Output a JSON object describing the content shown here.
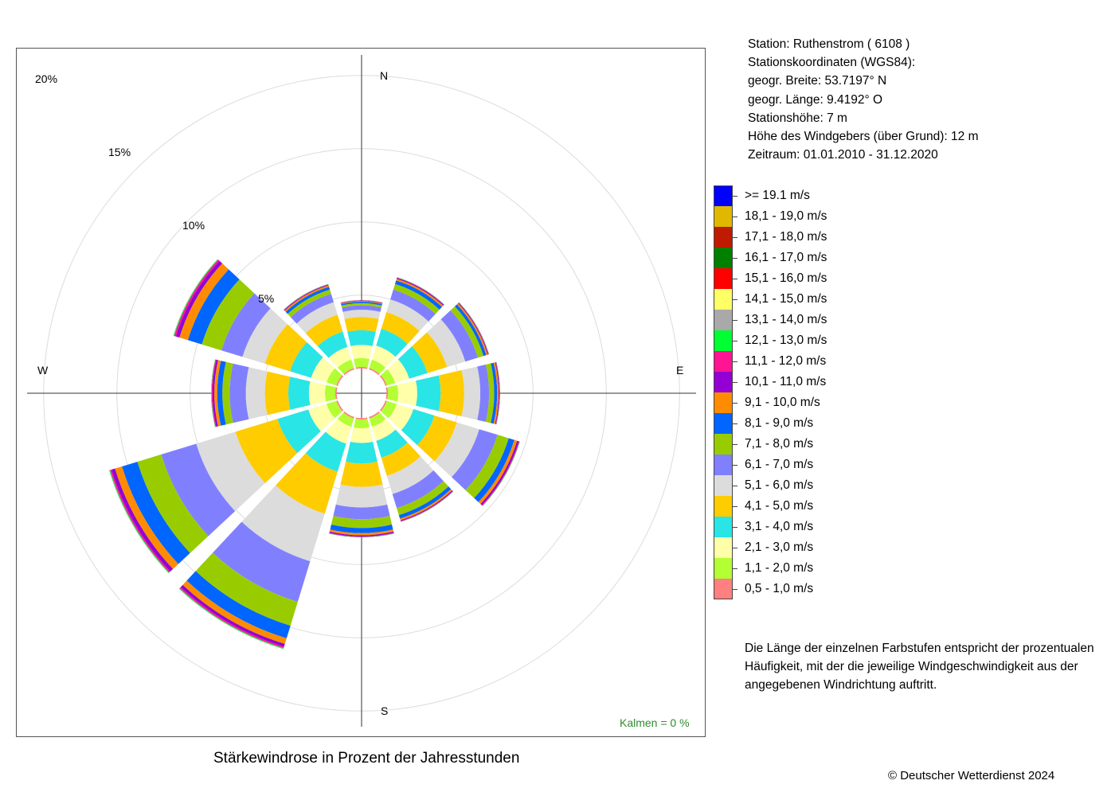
{
  "station_info": [
    "Station:  Ruthenstrom  ( 6108 )",
    "Stationskoordinaten (WGS84):",
    "geogr. Breite: 53.7197° N",
    "geogr. Länge:   9.4192° O",
    "Stationshöhe: 7 m",
    "Höhe des Windgebers (über Grund): 12 m",
    "Zeitraum: 01.01.2010 - 31.12.2020"
  ],
  "explanation": "Die Länge der einzelnen Farbstufen entspricht der prozentualen Häufigkeit, mit der die jeweilige Windgeschwindigkeit aus der angegebenen Windrichtung auftritt.",
  "copyright": "© Deutscher Wetterdienst  2024",
  "chart_data": {
    "type": "windrose",
    "title": "Stärkewindrose in Prozent der Jahresstunden",
    "calm_label": "Kalmen  =  0 %",
    "compass_labels": {
      "N": "N",
      "E": "E",
      "S": "S",
      "W": "W"
    },
    "ring_labels": [
      {
        "value": 5,
        "label": "5%"
      },
      {
        "value": 10,
        "label": "10%"
      },
      {
        "value": 15,
        "label": "15%"
      },
      {
        "value": 20,
        "label": "20%"
      }
    ],
    "rmax": 20,
    "inner_offset": 1.7,
    "directions_deg": [
      0,
      30,
      60,
      90,
      120,
      150,
      180,
      210,
      240,
      270,
      300,
      330
    ],
    "speed_classes": [
      {
        "label": "0,5 - 1,0 m/s",
        "color": "#FF8080"
      },
      {
        "label": "1,1 - 2,0 m/s",
        "color": "#B3FF33"
      },
      {
        "label": "2,1 - 3,0 m/s",
        "color": "#FFFFAA"
      },
      {
        "label": "3,1 - 4,0 m/s",
        "color": "#29E5E5"
      },
      {
        "label": "4,1 - 5,0 m/s",
        "color": "#FFCC00"
      },
      {
        "label": "5,1 - 6,0 m/s",
        "color": "#DCDCDC"
      },
      {
        "label": "6,1 - 7,0 m/s",
        "color": "#8080FF"
      },
      {
        "label": "7,1 - 8,0 m/s",
        "color": "#99CC00"
      },
      {
        "label": "8,1 - 9,0 m/s",
        "color": "#0066FF"
      },
      {
        "label": "9,1 - 10,0 m/s",
        "color": "#FF8C00"
      },
      {
        "label": "10,1 - 11,0 m/s",
        "color": "#9400D3"
      },
      {
        "label": "11,1 - 12,0 m/s",
        "color": "#FF1493"
      },
      {
        "label": "12,1 - 13,0 m/s",
        "color": "#00FF33"
      },
      {
        "label": "13,1 - 14,0 m/s",
        "color": "#A9A9A9"
      },
      {
        "label": "14,1 - 15,0 m/s",
        "color": "#FFFF66"
      },
      {
        "label": "15,1 - 16,0 m/s",
        "color": "#FF0000"
      },
      {
        "label": "16,1 - 17,0 m/s",
        "color": "#008000"
      },
      {
        "label": "17,1 - 18,0 m/s",
        "color": "#C01A00"
      },
      {
        "label": "18,1 - 19,0 m/s",
        "color": "#E0B800"
      },
      {
        "label": ">= 19.1 m/s",
        "color": "#0000FF"
      }
    ],
    "series": [
      {
        "direction": 0,
        "values": [
          0.1,
          0.6,
          0.9,
          1.0,
          0.9,
          0.5,
          0.3,
          0.15,
          0.1,
          0.05,
          0.03,
          0.02,
          0.01,
          0.01,
          0,
          0,
          0,
          0,
          0,
          0
        ]
      },
      {
        "direction": 30,
        "values": [
          0.1,
          0.6,
          1.0,
          1.2,
          1.2,
          0.9,
          0.7,
          0.4,
          0.25,
          0.12,
          0.06,
          0.03,
          0.02,
          0.01,
          0,
          0,
          0,
          0,
          0,
          0
        ]
      },
      {
        "direction": 60,
        "values": [
          0.1,
          0.6,
          1.0,
          1.3,
          1.4,
          1.3,
          0.9,
          0.4,
          0.2,
          0.1,
          0.05,
          0.03,
          0.02,
          0.01,
          0,
          0,
          0,
          0,
          0,
          0
        ]
      },
      {
        "direction": 90,
        "values": [
          0.1,
          0.7,
          1.3,
          1.6,
          1.6,
          1.1,
          0.6,
          0.35,
          0.2,
          0.1,
          0.05,
          0.03,
          0.02,
          0.01,
          0,
          0,
          0,
          0,
          0,
          0
        ]
      },
      {
        "direction": 120,
        "values": [
          0.1,
          0.7,
          1.2,
          1.5,
          1.6,
          1.6,
          1.3,
          0.8,
          0.4,
          0.2,
          0.12,
          0.05,
          0.03,
          0.01,
          0,
          0,
          0,
          0,
          0,
          0
        ]
      },
      {
        "direction": 150,
        "values": [
          0.1,
          0.6,
          1.0,
          1.2,
          1.3,
          1.3,
          1.0,
          0.5,
          0.25,
          0.12,
          0.06,
          0.03,
          0.02,
          0.01,
          0,
          0,
          0,
          0,
          0,
          0
        ]
      },
      {
        "direction": 180,
        "values": [
          0.1,
          0.6,
          1.0,
          1.4,
          1.6,
          1.4,
          0.8,
          0.6,
          0.35,
          0.15,
          0.08,
          0.04,
          0.02,
          0.01,
          0,
          0,
          0,
          0,
          0,
          0
        ]
      },
      {
        "direction": 210,
        "values": [
          0.1,
          0.6,
          1.2,
          2.0,
          3.0,
          3.4,
          2.9,
          1.7,
          0.9,
          0.4,
          0.2,
          0.1,
          0.05,
          0.02,
          0,
          0,
          0,
          0,
          0,
          0
        ]
      },
      {
        "direction": 240,
        "values": [
          0.1,
          0.7,
          1.3,
          2.2,
          3.0,
          2.8,
          2.5,
          1.7,
          1.1,
          0.5,
          0.25,
          0.1,
          0.05,
          0.02,
          0,
          0,
          0,
          0,
          0,
          0
        ]
      },
      {
        "direction": 270,
        "values": [
          0.1,
          0.7,
          1.1,
          1.4,
          1.6,
          1.3,
          1.1,
          0.5,
          0.35,
          0.2,
          0.12,
          0.06,
          0.03,
          0.01,
          0,
          0,
          0,
          0,
          0,
          0
        ]
      },
      {
        "direction": 300,
        "values": [
          0.1,
          0.7,
          1.1,
          1.5,
          1.8,
          1.6,
          1.5,
          1.4,
          1.0,
          0.6,
          0.25,
          0.12,
          0.05,
          0.02,
          0,
          0,
          0,
          0,
          0,
          0
        ]
      },
      {
        "direction": 330,
        "values": [
          0.1,
          0.6,
          0.9,
          1.1,
          1.2,
          0.9,
          0.6,
          0.3,
          0.2,
          0.1,
          0.05,
          0.03,
          0.02,
          0.01,
          0,
          0,
          0,
          0,
          0,
          0
        ]
      }
    ]
  }
}
